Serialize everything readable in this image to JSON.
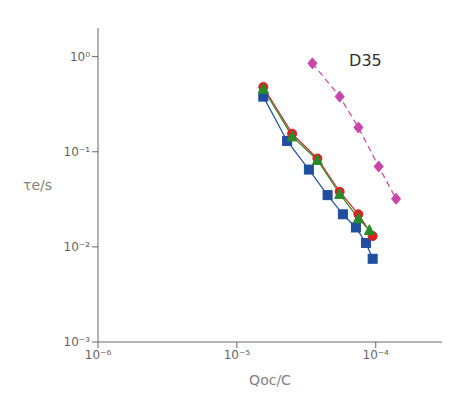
{
  "chart_data": {
    "type": "line",
    "log": true,
    "grid": false,
    "xlabel": "Qoc/C",
    "ylabel": "τe/s",
    "annotation": "D35",
    "xlim": [
      1e-06,
      0.0003
    ],
    "ylim": [
      0.001,
      2
    ],
    "xticks": [
      {
        "value": 1e-06,
        "label": "10⁻⁶"
      },
      {
        "value": 1e-05,
        "label": "10⁻⁵"
      },
      {
        "value": 0.0001,
        "label": "10⁻⁴"
      }
    ],
    "yticks": [
      {
        "value": 0.001,
        "label": "10⁻³"
      },
      {
        "value": 0.01,
        "label": "10⁻²"
      },
      {
        "value": 0.1,
        "label": "10⁻¹"
      },
      {
        "value": 1,
        "label": "10⁰"
      }
    ],
    "series": [
      {
        "color": "#1f4e9e",
        "marker": "square",
        "line_style": "solid",
        "x": [
          1.55e-05,
          2.3e-05,
          3.3e-05,
          4.5e-05,
          5.8e-05,
          7.2e-05,
          8.5e-05,
          9.5e-05
        ],
        "values": [
          0.38,
          0.13,
          0.065,
          0.035,
          0.022,
          0.016,
          0.011,
          0.0075
        ]
      },
      {
        "color": "#e02020",
        "marker": "circle",
        "line_style": "solid",
        "x": [
          1.55e-05,
          2.5e-05,
          3.8e-05,
          5.5e-05,
          7.5e-05,
          9.5e-05
        ],
        "values": [
          0.48,
          0.155,
          0.085,
          0.038,
          0.022,
          0.013
        ]
      },
      {
        "color": "#2a8a2a",
        "marker": "triangle",
        "line_style": "solid",
        "x": [
          1.55e-05,
          2.5e-05,
          3.8e-05,
          5.5e-05,
          7.5e-05,
          9e-05
        ],
        "values": [
          0.46,
          0.145,
          0.082,
          0.036,
          0.02,
          0.015
        ]
      },
      {
        "color": "#cc44aa",
        "marker": "diamond",
        "line_style": "dashed",
        "x": [
          3.5e-05,
          5.5e-05,
          7.5e-05,
          0.000105,
          0.00014
        ],
        "values": [
          0.85,
          0.38,
          0.18,
          0.07,
          0.032
        ]
      }
    ]
  }
}
